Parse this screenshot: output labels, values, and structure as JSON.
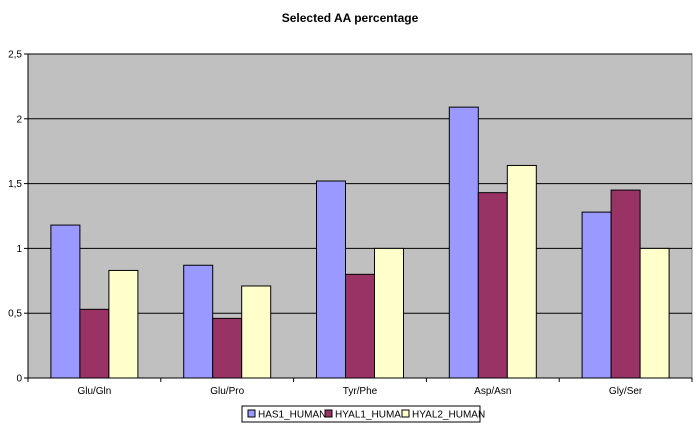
{
  "chart_data": {
    "type": "bar",
    "title": "Selected AA percentage",
    "xlabel": "",
    "ylabel": "",
    "categories": [
      "Glu/Gln",
      "Glu/Pro",
      "Tyr/Phe",
      "Asp/Asn",
      "Gly/Ser"
    ],
    "series": [
      {
        "name": "HAS1_HUMAN",
        "color": "#9999ff",
        "values": [
          1.18,
          0.87,
          1.52,
          2.09,
          1.28
        ]
      },
      {
        "name": "HYAL1_HUMAN",
        "color": "#993366",
        "values": [
          0.53,
          0.46,
          0.8,
          1.43,
          1.45
        ]
      },
      {
        "name": "HYAL2_HUMAN",
        "color": "#ffffcc",
        "values": [
          0.83,
          0.71,
          1.0,
          1.64,
          1.0
        ]
      }
    ],
    "ylim": [
      0,
      2.5
    ],
    "yticks": [
      0,
      0.5,
      1,
      1.5,
      2,
      2.5
    ],
    "ytick_labels": [
      "0",
      "0,5",
      "1",
      "1,5",
      "2",
      "2,5"
    ],
    "grid": true,
    "plot_background": "#c0c0c0",
    "legend_position": "bottom"
  }
}
